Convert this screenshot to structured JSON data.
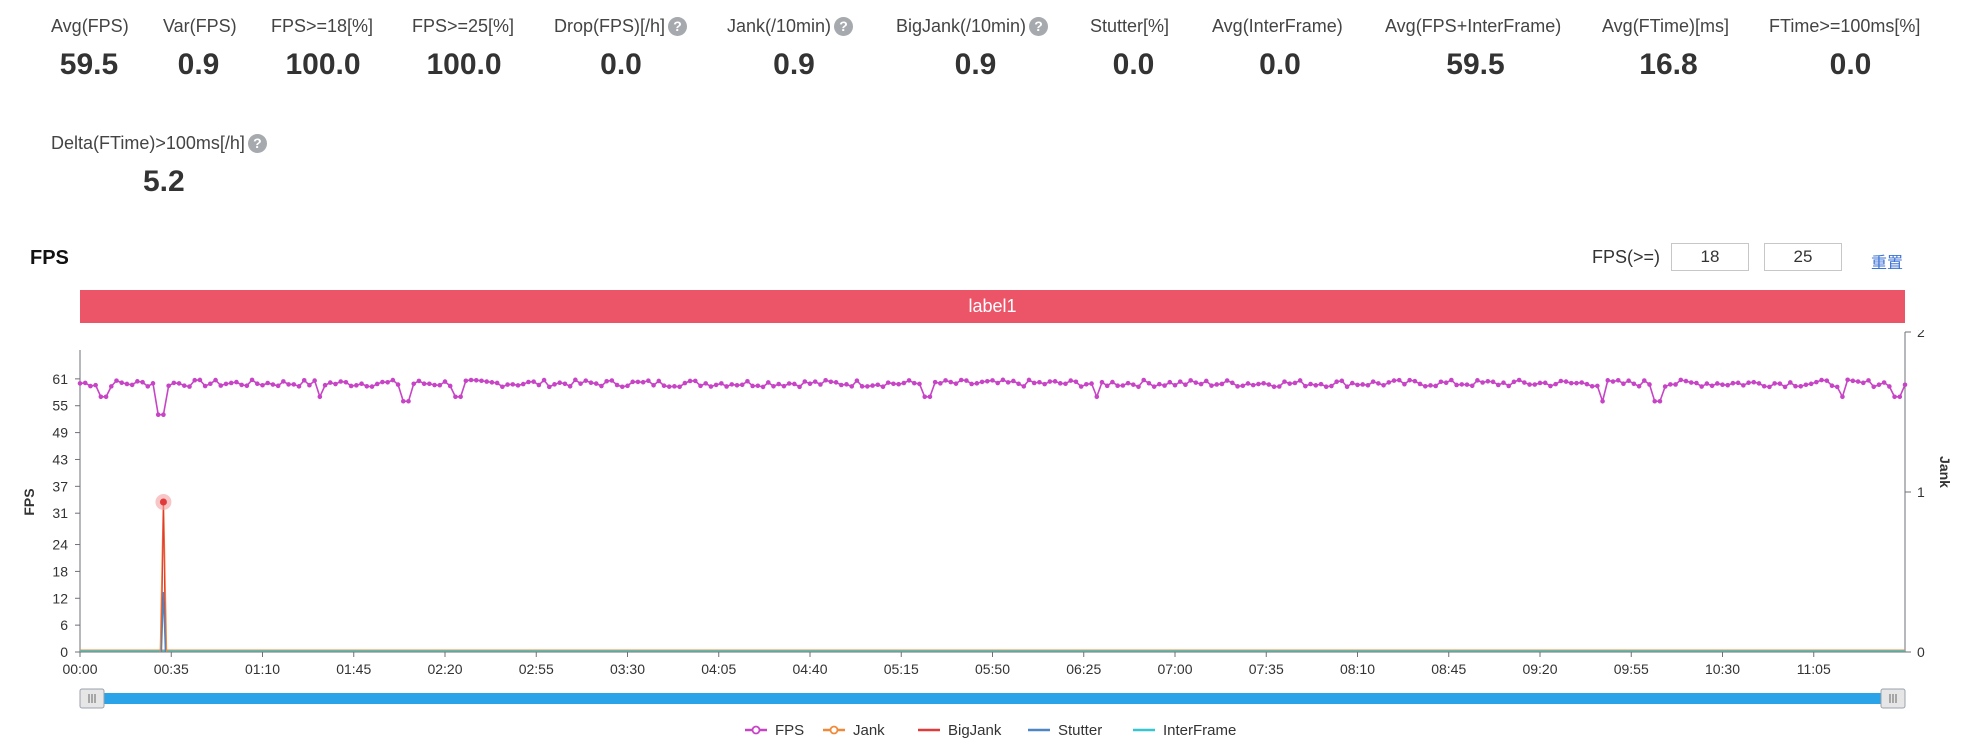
{
  "stats": [
    {
      "label": "Avg(FPS)",
      "value": "59.5",
      "help": false
    },
    {
      "label": "Var(FPS)",
      "value": "0.9",
      "help": false
    },
    {
      "label": "FPS>=18[%]",
      "value": "100.0",
      "help": false
    },
    {
      "label": "FPS>=25[%]",
      "value": "100.0",
      "help": false
    },
    {
      "label": "Drop(FPS)[/h]",
      "value": "0.0",
      "help": true
    },
    {
      "label": "Jank(/10min)",
      "value": "0.9",
      "help": true
    },
    {
      "label": "BigJank(/10min)",
      "value": "0.9",
      "help": true
    },
    {
      "label": "Stutter[%]",
      "value": "0.0",
      "help": false
    },
    {
      "label": "Avg(InterFrame)",
      "value": "0.0",
      "help": false
    },
    {
      "label": "Avg(FPS+InterFrame)",
      "value": "59.5",
      "help": false
    },
    {
      "label": "Avg(FTime)[ms]",
      "value": "16.8",
      "help": false
    },
    {
      "label": "FTime>=100ms[%]",
      "value": "0.0",
      "help": false
    },
    {
      "label": "Delta(FTime)>100ms[/h]",
      "value": "5.2",
      "help": true
    }
  ],
  "help_glyph": "?",
  "section": {
    "title": "FPS",
    "threshold_label": "FPS(>=)",
    "threshold_low": "18",
    "threshold_high": "25",
    "reset_label": "重置"
  },
  "label_band": {
    "text": "label1",
    "color": "#ec5468"
  },
  "chart_data": {
    "type": "line",
    "title": "FPS",
    "ylabel": "FPS",
    "y2label": "Jank",
    "y_ticks": [
      0,
      6,
      12,
      18,
      24,
      31,
      37,
      43,
      49,
      55,
      61
    ],
    "ylim": [
      0,
      67
    ],
    "y2_ticks": [
      0,
      1,
      2
    ],
    "y2lim": [
      0,
      2
    ],
    "x_ticks": [
      "00:00",
      "00:35",
      "01:10",
      "01:45",
      "02:20",
      "02:55",
      "03:30",
      "04:05",
      "04:40",
      "05:15",
      "05:50",
      "06:25",
      "07:00",
      "07:35",
      "08:10",
      "08:45",
      "09:20",
      "09:55",
      "10:30",
      "11:05"
    ],
    "x_range_seconds": [
      0,
      700
    ],
    "tick_step_seconds": 35,
    "fps_baseline": 60,
    "fps_low_points": [
      {
        "t": 9,
        "v": 57
      },
      {
        "t": 31,
        "v": 53
      },
      {
        "t": 92,
        "v": 57
      },
      {
        "t": 125,
        "v": 56
      },
      {
        "t": 145,
        "v": 57
      },
      {
        "t": 325,
        "v": 57
      },
      {
        "t": 390,
        "v": 57
      },
      {
        "t": 584,
        "v": 56
      },
      {
        "t": 605,
        "v": 56
      },
      {
        "t": 676,
        "v": 57
      },
      {
        "t": 697,
        "v": 57
      }
    ],
    "series": [
      {
        "name": "FPS",
        "color": "#c744c6",
        "axis": "left",
        "marker": "circle"
      },
      {
        "name": "Jank",
        "color": "#f08a3a",
        "axis": "right",
        "spike": {
          "t": 32,
          "v": 1
        }
      },
      {
        "name": "BigJank",
        "color": "#e03a3a",
        "axis": "right",
        "spike": {
          "t": 32,
          "v": 1
        }
      },
      {
        "name": "Stutter",
        "color": "#4d86c2",
        "axis": "right",
        "spike": {
          "t": 32,
          "v": 0.4
        }
      },
      {
        "name": "InterFrame",
        "color": "#35c6cf",
        "axis": "right"
      }
    ],
    "legend_position": "bottom-center"
  },
  "slider": {
    "track_color": "#2aa3e8",
    "start": 0,
    "end": 1
  }
}
